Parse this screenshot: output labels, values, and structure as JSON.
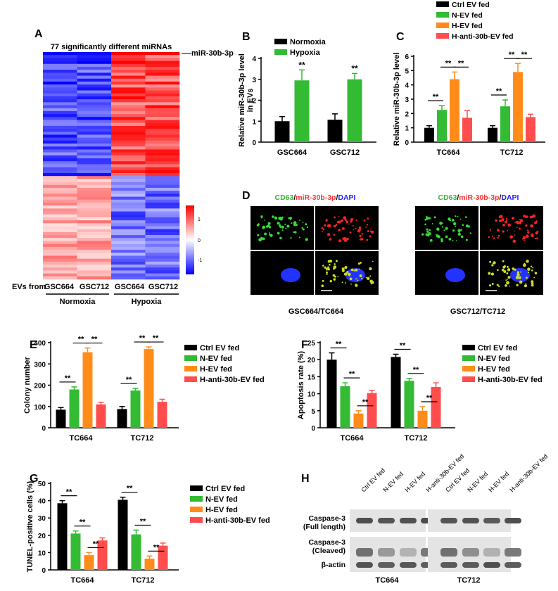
{
  "figure": {
    "panel_letters": [
      "A",
      "B",
      "C",
      "D",
      "E",
      "F",
      "G",
      "H"
    ]
  },
  "colors": {
    "ctrl": "#000000",
    "n_ev": "#33bb33",
    "h_ev": "#ff8c1a",
    "anti": "#ff4d4d",
    "normoxia": "#000000",
    "hypoxia": "#33bb33",
    "heat_low": "#0000ff",
    "heat_mid": "#ffffff",
    "heat_high": "#ff0000"
  },
  "chart_data": [
    {
      "panel": "A",
      "type": "heatmap",
      "title": "77 significantly different miRNAs",
      "annotation": "miR-30b-3p",
      "row_label": "EVs from",
      "columns": [
        "GSC664",
        "GSC712",
        "GSC664",
        "GSC712"
      ],
      "groups": [
        "Normoxia",
        "Hypoxia"
      ],
      "colorbar": {
        "ticks": [
          "1",
          "0",
          "-1"
        ],
        "range": [
          -1.5,
          1.5
        ]
      },
      "rows": 77
    },
    {
      "panel": "B",
      "type": "bar",
      "ylabel": "Relative miR-30b-3p level in EVs",
      "ylabel_lines": [
        "Relative miR-30b-3p level",
        "in EVs"
      ],
      "categories": [
        "GSC664",
        "GSC712"
      ],
      "yticks": [
        "0",
        "1",
        "2",
        "3",
        "4"
      ],
      "ylim": [
        0,
        4
      ],
      "legend": [
        "Normoxia",
        "Hypoxia"
      ],
      "series": [
        {
          "name": "Normoxia",
          "values": [
            1.0,
            1.07
          ],
          "errors": [
            0.22,
            0.28
          ]
        },
        {
          "name": "Hypoxia",
          "values": [
            2.95,
            3.0
          ],
          "errors": [
            0.5,
            0.28
          ]
        }
      ],
      "significance": [
        "**",
        "**"
      ]
    },
    {
      "panel": "D",
      "type": "bar",
      "ylabel": "Relative miR-30b-3p level",
      "categories": [
        "TC664",
        "TC712"
      ],
      "yticks": [
        "0",
        "1",
        "2",
        "3",
        "4",
        "5",
        "6"
      ],
      "ylim": [
        0,
        6
      ],
      "legend": [
        "Ctrl EV fed",
        "N-EV fed",
        "H-EV fed",
        "H-anti-30b-EV fed"
      ],
      "series": [
        {
          "name": "Ctrl EV fed",
          "values": [
            1.0,
            1.0
          ],
          "errors": [
            0.15,
            0.15
          ]
        },
        {
          "name": "N-EV fed",
          "values": [
            2.25,
            2.5
          ],
          "errors": [
            0.3,
            0.45
          ]
        },
        {
          "name": "H-EV fed",
          "values": [
            4.4,
            4.9
          ],
          "errors": [
            0.5,
            0.6
          ]
        },
        {
          "name": "H-anti-30b-EV fed",
          "values": [
            1.7,
            1.75
          ],
          "errors": [
            0.5,
            0.2
          ]
        }
      ],
      "significance": "**"
    },
    {
      "panel": "C",
      "type": "image",
      "stain_label": [
        "CD63",
        "/",
        "miR-30b-3p",
        "/",
        "DAPI"
      ],
      "captions": [
        "GSC664/TC664",
        "GSC712/TC712"
      ]
    },
    {
      "panel": "E",
      "type": "bar",
      "ylabel": "Colony number",
      "categories": [
        "TC664",
        "TC712"
      ],
      "yticks": [
        "0",
        "100",
        "200",
        "300",
        "400"
      ],
      "ylim": [
        0,
        400
      ],
      "legend": [
        "Ctrl EV fed",
        "N-EV fed",
        "H-EV fed",
        "H-anti-30b-EV fed"
      ],
      "series": [
        {
          "name": "Ctrl EV fed",
          "values": [
            85,
            88
          ],
          "errors": [
            10,
            12
          ]
        },
        {
          "name": "N-EV fed",
          "values": [
            180,
            175
          ],
          "errors": [
            12,
            10
          ]
        },
        {
          "name": "H-EV fed",
          "values": [
            355,
            370
          ],
          "errors": [
            20,
            10
          ]
        },
        {
          "name": "H-anti-30b-EV fed",
          "values": [
            110,
            122
          ],
          "errors": [
            10,
            12
          ]
        }
      ],
      "significance": "**"
    },
    {
      "panel": "F",
      "type": "bar",
      "ylabel": "Apoptosis rate (%)",
      "categories": [
        "TC664",
        "TC712"
      ],
      "yticks": [
        "0",
        "5",
        "10",
        "15",
        "20",
        "25"
      ],
      "ylim": [
        0,
        25
      ],
      "legend": [
        "Ctrl EV fed",
        "N-EV fed",
        "H-EV fed",
        "H-anti-30b-EV fed"
      ],
      "series": [
        {
          "name": "Ctrl EV fed",
          "values": [
            20,
            20.8
          ],
          "errors": [
            2,
            0.8
          ]
        },
        {
          "name": "N-EV fed",
          "values": [
            12.2,
            13.8
          ],
          "errors": [
            1,
            0.7
          ]
        },
        {
          "name": "H-EV fed",
          "values": [
            4.2,
            5.0
          ],
          "errors": [
            0.8,
            1.2
          ]
        },
        {
          "name": "H-anti-30b-EV fed",
          "values": [
            10.2,
            12.0
          ],
          "errors": [
            0.8,
            1.2
          ]
        }
      ],
      "significance": "**"
    },
    {
      "panel": "G",
      "type": "bar",
      "ylabel": "TUNEL-positive cells (%)",
      "categories": [
        "TC664",
        "TC712"
      ],
      "yticks": [
        "0",
        "10",
        "20",
        "30",
        "40",
        "50"
      ],
      "ylim": [
        0,
        50
      ],
      "legend": [
        "Ctrl EV fed",
        "N-EV fed",
        "H-EV fed",
        "H-anti-30b-EV fed"
      ],
      "series": [
        {
          "name": "Ctrl EV fed",
          "values": [
            38.5,
            40.5
          ],
          "errors": [
            1.5,
            1.5
          ]
        },
        {
          "name": "N-EV fed",
          "values": [
            21,
            20.5
          ],
          "errors": [
            1.5,
            2.5
          ]
        },
        {
          "name": "H-EV fed",
          "values": [
            8.5,
            6.5
          ],
          "errors": [
            1.5,
            1.5
          ]
        },
        {
          "name": "H-anti-30b-EV fed",
          "values": [
            17,
            14
          ],
          "errors": [
            1.5,
            1.5
          ]
        }
      ],
      "significance": "**"
    },
    {
      "panel": "H",
      "type": "image",
      "lanes": [
        "Ctrl EV fed",
        "N-EV fed",
        "H-EV fed",
        "H-anti-30b-EV fed"
      ],
      "bands": [
        "Caspase-3 (Full length)",
        "Caspase-3 (Cleaved)",
        "β-actin"
      ],
      "band_lines": [
        [
          "Caspase-3",
          "(Full length)"
        ],
        [
          "Caspase-3",
          "(Cleaved)"
        ],
        [
          "β-actin"
        ]
      ],
      "groups": [
        "TC664",
        "TC712"
      ]
    }
  ]
}
